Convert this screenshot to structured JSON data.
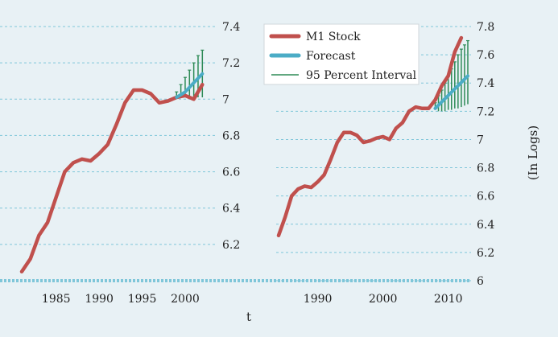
{
  "chart_data": [
    {
      "type": "line",
      "panel": "left",
      "xlabel": "t",
      "ylabel": "",
      "xlim": [
        1981,
        2003
      ],
      "ylim": [
        6.0,
        7.4
      ],
      "x_ticks": [
        "1985",
        "1990",
        "1995",
        "2000"
      ],
      "y_ticks": [
        "6.2",
        "6.4",
        "6.6",
        "6.8",
        "7",
        "7.2",
        "7.4"
      ],
      "grid": true,
      "series": [
        {
          "name": "M1 Stock",
          "color": "#c0504d",
          "x": [
            1981,
            1982,
            1983,
            1984,
            1985,
            1986,
            1987,
            1988,
            1989,
            1990,
            1991,
            1992,
            1993,
            1994,
            1995,
            1996,
            1997,
            1998,
            1999,
            2000,
            2001,
            2002
          ],
          "y": [
            6.05,
            6.12,
            6.25,
            6.32,
            6.46,
            6.6,
            6.65,
            6.67,
            6.66,
            6.7,
            6.75,
            6.86,
            6.98,
            7.05,
            7.05,
            7.03,
            6.98,
            6.99,
            7.01,
            7.02,
            7.0,
            7.08
          ]
        },
        {
          "name": "Forecast",
          "color": "#4bacc6",
          "x": [
            1999,
            2000,
            2001,
            2002
          ],
          "y": [
            7.01,
            7.04,
            7.09,
            7.14
          ]
        }
      ],
      "interval": {
        "name": "95 Percent Interval",
        "color": "#2e8b57",
        "x": [
          1999,
          1999.5,
          2000,
          2000.5,
          2001,
          2001.5,
          2002
        ],
        "lower": [
          7.01,
          7.01,
          7.01,
          7.01,
          7.01,
          7.01,
          7.01
        ],
        "upper": [
          7.04,
          7.08,
          7.12,
          7.16,
          7.2,
          7.24,
          7.27
        ]
      }
    },
    {
      "type": "line",
      "panel": "right",
      "xlabel": "",
      "ylabel": "(In Logs)",
      "xlim": [
        1984,
        2013
      ],
      "ylim": [
        6.0,
        7.8
      ],
      "x_ticks": [
        "1990",
        "2000",
        "2010"
      ],
      "y_ticks": [
        "6",
        "6.2",
        "6.4",
        "6.6",
        "6.8",
        "7",
        "7.2",
        "7.4",
        "7.6",
        "7.8"
      ],
      "grid": true,
      "series": [
        {
          "name": "M1 Stock",
          "color": "#c0504d",
          "x": [
            1984,
            1985,
            1986,
            1987,
            1988,
            1989,
            1990,
            1991,
            1992,
            1993,
            1994,
            1995,
            1996,
            1997,
            1998,
            1999,
            2000,
            2001,
            2002,
            2003,
            2004,
            2005,
            2006,
            2007,
            2008,
            2009,
            2010,
            2011,
            2012
          ],
          "y": [
            6.32,
            6.45,
            6.6,
            6.65,
            6.67,
            6.66,
            6.7,
            6.75,
            6.86,
            6.98,
            7.05,
            7.05,
            7.03,
            6.98,
            6.99,
            7.01,
            7.02,
            7.0,
            7.08,
            7.12,
            7.2,
            7.23,
            7.22,
            7.22,
            7.28,
            7.38,
            7.45,
            7.62,
            7.72
          ]
        },
        {
          "name": "Forecast",
          "color": "#4bacc6",
          "x": [
            2008,
            2013
          ],
          "y": [
            7.22,
            7.45
          ]
        }
      ],
      "interval": {
        "name": "95 Percent Interval",
        "color": "#2e8b57",
        "x": [
          2008,
          2008.5,
          2009,
          2009.5,
          2010,
          2010.5,
          2011,
          2011.5,
          2012,
          2012.5,
          2013
        ],
        "lower": [
          7.21,
          7.2,
          7.2,
          7.2,
          7.21,
          7.21,
          7.22,
          7.22,
          7.23,
          7.24,
          7.25
        ],
        "upper": [
          7.26,
          7.31,
          7.35,
          7.4,
          7.45,
          7.5,
          7.55,
          7.6,
          7.64,
          7.67,
          7.7
        ]
      }
    }
  ],
  "legend": [
    {
      "name": "M1 Stock",
      "color": "#c0504d"
    },
    {
      "name": "Forecast",
      "color": "#4bacc6"
    },
    {
      "name": "95 Percent Interval",
      "color": "#2e8b57"
    }
  ],
  "colors": {
    "background": "#e8f1f5",
    "grid": "#7fc6d9",
    "text": "#222222"
  }
}
